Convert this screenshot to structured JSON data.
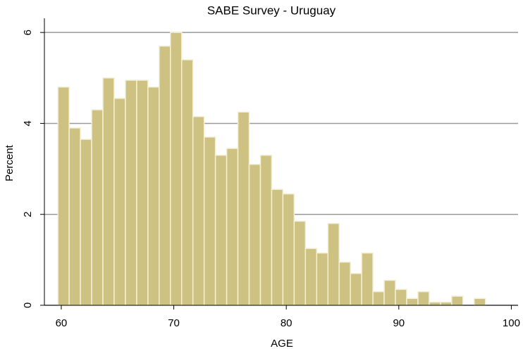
{
  "chart_data": {
    "type": "histogram",
    "title": "SABE Survey - Uruguay",
    "x_label": "AGE",
    "y_label": "Percent",
    "bins": [
      59.7,
      60.7,
      61.7,
      62.7,
      63.7,
      64.7,
      65.7,
      66.7,
      67.7,
      68.7,
      69.7,
      70.7,
      71.7,
      72.7,
      73.7,
      74.7,
      75.7,
      76.7,
      77.7,
      78.7,
      79.7,
      80.7,
      81.7,
      82.7,
      83.7,
      84.7,
      85.7,
      86.7,
      87.7,
      88.7,
      89.7,
      90.7,
      91.7,
      92.7,
      93.7,
      94.7,
      95.7,
      96.7,
      97.7
    ],
    "values": [
      4.8,
      3.9,
      3.65,
      4.3,
      5.0,
      4.55,
      4.95,
      4.95,
      4.8,
      5.7,
      6.0,
      5.4,
      4.15,
      3.7,
      3.3,
      3.45,
      4.25,
      3.1,
      3.3,
      2.55,
      2.45,
      1.85,
      1.25,
      1.15,
      1.8,
      0.95,
      0.7,
      1.15,
      0.3,
      0.55,
      0.35,
      0.15,
      0.3,
      0.07,
      0.07,
      0.2,
      0,
      0.15
    ],
    "color": "#cdc282",
    "xlim": [
      58.5,
      100.6
    ],
    "xticks": [
      60,
      70,
      80,
      90,
      100
    ],
    "ylim": [
      0,
      6.25
    ],
    "yticks": [
      0,
      2,
      4,
      6
    ],
    "grid": true
  }
}
